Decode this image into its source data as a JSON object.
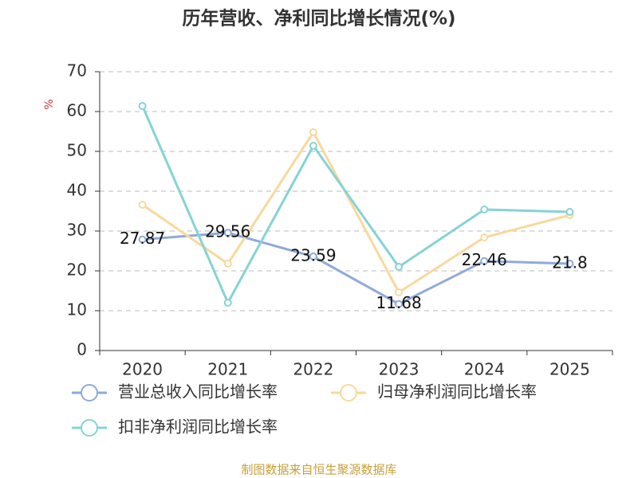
{
  "chart_data": {
    "type": "line",
    "title": "历年营收、净利同比增长情况(%)",
    "y_label": "%",
    "categories": [
      "2020",
      "2021",
      "2022",
      "2023",
      "2024",
      "2025"
    ],
    "series": [
      {
        "name": "营业总收入同比增长率",
        "color": "#8faad8",
        "values": [
          27.87,
          29.56,
          23.59,
          11.68,
          22.46,
          21.8
        ],
        "data_labels": true
      },
      {
        "name": "归母净利润同比增长率",
        "color": "#f8d99c",
        "values": [
          36.6,
          21.8,
          54.8,
          14.6,
          28.4,
          34.0
        ],
        "data_labels": false
      },
      {
        "name": "扣非净利润同比增长率",
        "color": "#86d3d4",
        "values": [
          61.4,
          12.0,
          51.4,
          21.0,
          35.4,
          34.8
        ],
        "data_labels": false
      }
    ],
    "ylim": [
      0,
      70
    ],
    "yticks": [
      0,
      10,
      20,
      30,
      40,
      50,
      60,
      70
    ],
    "grid": true,
    "source": "制图数据来自恒生聚源数据库"
  }
}
